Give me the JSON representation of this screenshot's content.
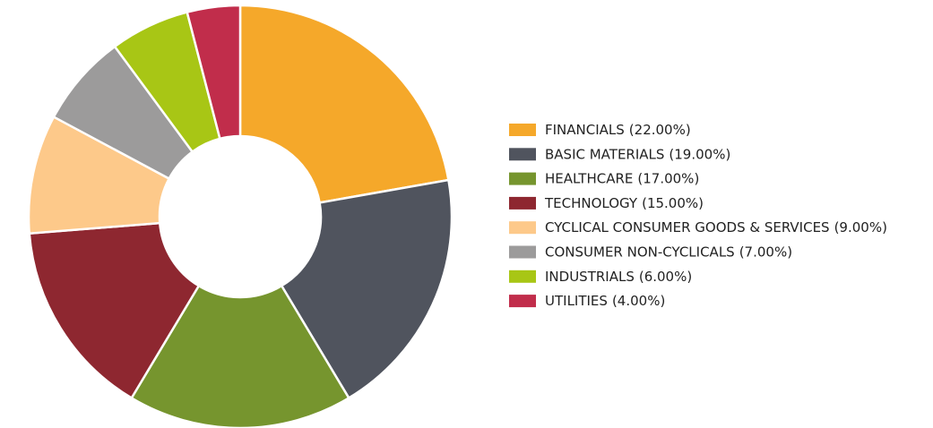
{
  "chart_data": {
    "type": "donut",
    "categories": [
      "FINANCIALS",
      "BASIC MATERIALS",
      "HEALTHCARE",
      "TECHNOLOGY",
      "CYCLICAL CONSUMER GOODS & SERVICES",
      "CONSUMER NON-CYCLICALS",
      "INDUSTRIALS",
      "UTILITIES"
    ],
    "values": [
      22,
      19,
      17,
      15,
      9,
      7,
      6,
      4
    ],
    "value_labels": [
      "(22.00%)",
      "(19.00%)",
      "(17.00%)",
      "(15.00%)",
      "(9.00%)",
      "(7.00%)",
      "(6.00%)",
      "(4.00%)"
    ],
    "colors": [
      "#f5a82a",
      "#50545e",
      "#76952e",
      "#8e2730",
      "#fdc98a",
      "#9c9b9b",
      "#a8c615",
      "#c12d4b"
    ],
    "legend": "right"
  }
}
